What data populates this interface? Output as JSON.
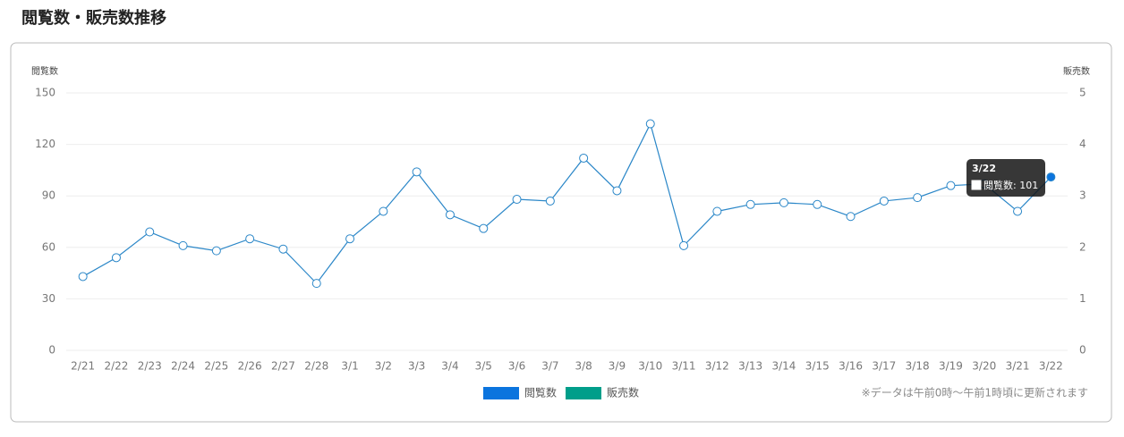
{
  "chart_data": {
    "type": "line",
    "title": "閲覧数・販売数推移",
    "y_label": "閲覧数",
    "y2_label": "販売数",
    "categories": [
      "2/21",
      "2/22",
      "2/23",
      "2/24",
      "2/25",
      "2/26",
      "2/27",
      "2/28",
      "3/1",
      "3/2",
      "3/3",
      "3/4",
      "3/5",
      "3/6",
      "3/7",
      "3/8",
      "3/9",
      "3/10",
      "3/11",
      "3/12",
      "3/13",
      "3/14",
      "3/15",
      "3/16",
      "3/17",
      "3/18",
      "3/19",
      "3/20",
      "3/21",
      "3/22"
    ],
    "series": [
      {
        "name": "閲覧数",
        "color": "#0b74de",
        "line_color": "#2b87c8",
        "values": [
          43,
          54,
          69,
          61,
          58,
          65,
          59,
          39,
          65,
          81,
          104,
          79,
          71,
          88,
          87,
          112,
          93,
          132,
          61,
          81,
          85,
          86,
          85,
          78,
          87,
          89,
          96,
          97,
          81,
          101
        ]
      },
      {
        "name": "販売数",
        "color": "#009e8a",
        "axis": "y2",
        "values": [
          null,
          null,
          null,
          null,
          null,
          null,
          null,
          null,
          null,
          null,
          null,
          null,
          null,
          null,
          null,
          null,
          null,
          null,
          null,
          null,
          null,
          null,
          null,
          null,
          null,
          null,
          null,
          null,
          null,
          null
        ]
      }
    ],
    "ylim": [
      0,
      150
    ],
    "yticks": [
      0,
      30,
      60,
      90,
      120,
      150
    ],
    "y2lim": [
      0,
      5
    ],
    "y2ticks": [
      0,
      1,
      2,
      3,
      4,
      5
    ],
    "grid": true,
    "legend": "bottom",
    "tooltip": {
      "index": 29,
      "title": "3/22",
      "text": "閲覧数: 101"
    },
    "note": "※データは午前0時～午前1時頃に更新されます"
  }
}
